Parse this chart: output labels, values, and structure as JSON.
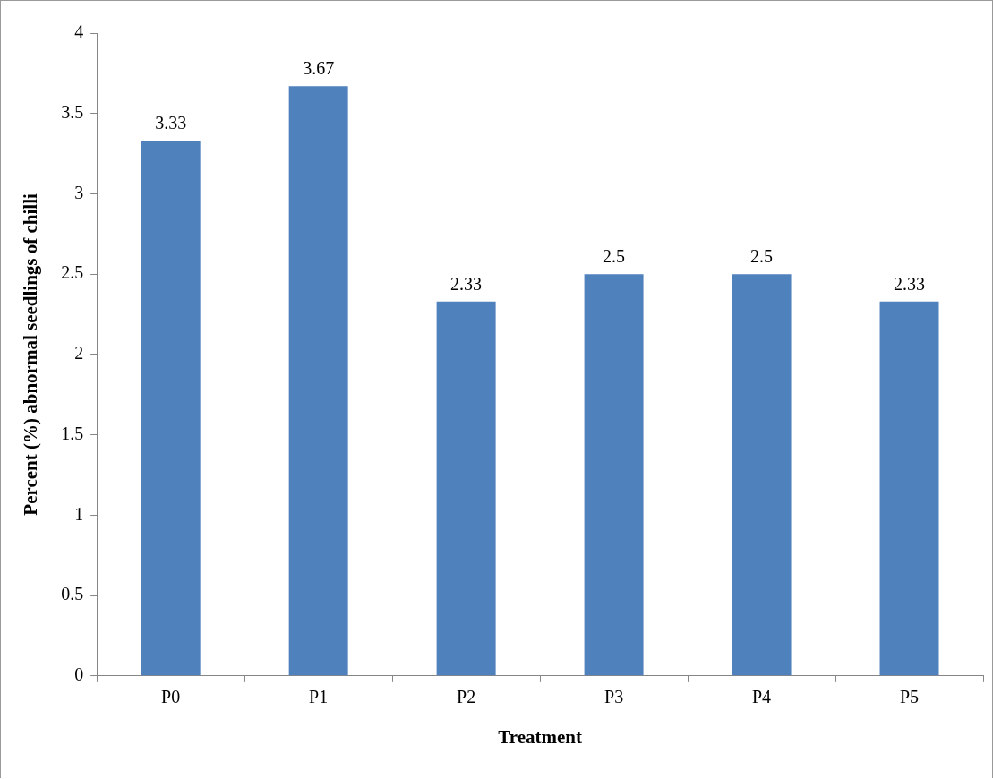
{
  "chart_data": {
    "type": "bar",
    "xlabel": "Treatment",
    "ylabel": "Percent (%) abnormal seedlings of chilli",
    "categories": [
      "P0",
      "P1",
      "P2",
      "P3",
      "P4",
      "P5"
    ],
    "values": [
      3.33,
      3.67,
      2.33,
      2.5,
      2.5,
      2.33
    ],
    "color": "#4f81bd",
    "ylim": [
      0,
      4
    ],
    "yticks": [
      0,
      0.5,
      1,
      1.5,
      2,
      2.5,
      3,
      3.5,
      4
    ],
    "grid": false,
    "legend": false,
    "data_labels": true
  }
}
